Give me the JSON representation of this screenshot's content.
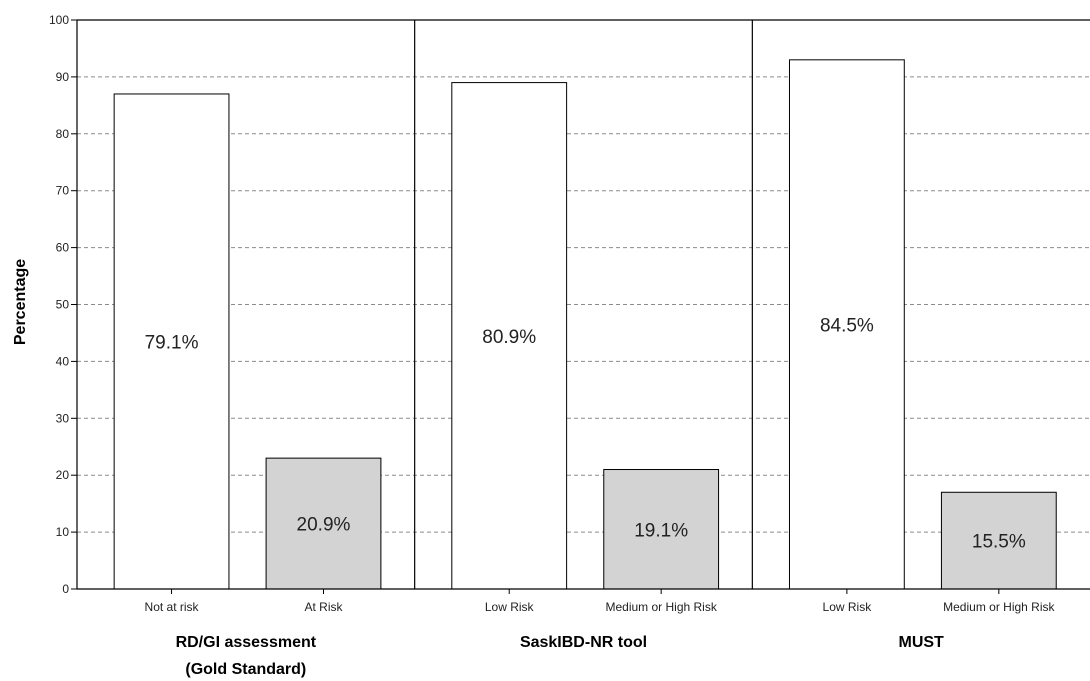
{
  "chart_data": {
    "type": "bar",
    "ylabel": "Percentage",
    "ylim": [
      0,
      100
    ],
    "yticks": [
      0,
      10,
      20,
      30,
      40,
      50,
      60,
      70,
      80,
      90,
      100
    ],
    "grid": true,
    "colors": {
      "low_risk_fill": "#ffffff",
      "at_risk_fill": "#d3d3d3",
      "bar_stroke": "#000000",
      "grid": "#8c8c8c"
    },
    "groups": [
      {
        "label": "RD/GI assessment",
        "label2": "(Gold Standard)",
        "bars": [
          {
            "category": "Not at risk",
            "value": 87,
            "label": "79.1%",
            "fill": "low"
          },
          {
            "category": "At Risk",
            "value": 23,
            "label": "20.9%",
            "fill": "high"
          }
        ]
      },
      {
        "label": "SaskIBD-NR tool",
        "label2": "",
        "bars": [
          {
            "category": "Low Risk",
            "value": 89,
            "label": "80.9%",
            "fill": "low"
          },
          {
            "category": "Medium or High Risk",
            "value": 21,
            "label": "19.1%",
            "fill": "high"
          }
        ]
      },
      {
        "label": "MUST",
        "label2": "",
        "bars": [
          {
            "category": "Low Risk",
            "value": 93,
            "label": "84.5%",
            "fill": "low"
          },
          {
            "category": "Medium or High Risk",
            "value": 17,
            "label": "15.5%",
            "fill": "high"
          }
        ]
      }
    ]
  }
}
